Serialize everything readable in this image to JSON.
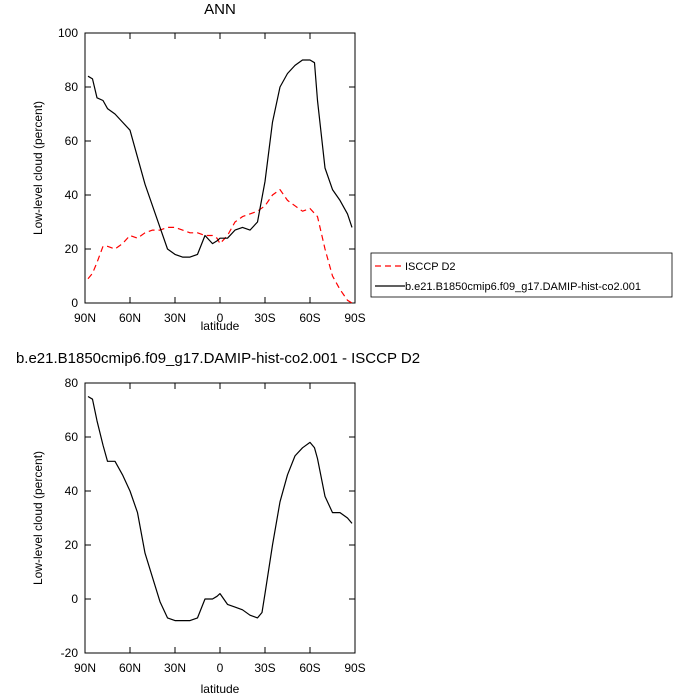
{
  "chart_data": [
    {
      "type": "line",
      "title": "ANN",
      "xlabel": "latitude",
      "ylabel": "Low-level cloud (percent)",
      "xlim": [
        90,
        -90
      ],
      "ylim": [
        0,
        100
      ],
      "xticks": [
        {
          "value": 90,
          "label": "90N"
        },
        {
          "value": 60,
          "label": "60N"
        },
        {
          "value": 30,
          "label": "30N"
        },
        {
          "value": 0,
          "label": "0"
        },
        {
          "value": -30,
          "label": "30S"
        },
        {
          "value": -60,
          "label": "60S"
        },
        {
          "value": -90,
          "label": "90S"
        }
      ],
      "yticks": [
        0,
        20,
        40,
        60,
        80,
        100
      ],
      "legend": "right",
      "series": [
        {
          "name": "ISCCP D2",
          "color": "#ff0000",
          "style": "dashed",
          "x": [
            88,
            85,
            82,
            78,
            75,
            70,
            65,
            60,
            55,
            50,
            45,
            40,
            35,
            30,
            25,
            20,
            15,
            10,
            5,
            2,
            0,
            -5,
            -10,
            -15,
            -20,
            -25,
            -30,
            -35,
            -40,
            -45,
            -50,
            -55,
            -60,
            -65,
            -70,
            -75,
            -80,
            -85,
            -88
          ],
          "y": [
            9,
            11,
            15,
            21,
            21,
            20,
            22,
            25,
            24,
            26,
            27,
            27,
            28,
            28,
            27,
            26,
            26,
            25,
            25,
            24,
            22,
            25,
            30,
            32,
            33,
            34,
            36,
            40,
            42,
            38,
            36,
            34,
            35,
            32,
            20,
            10,
            5,
            1,
            0
          ]
        },
        {
          "name": "b.e21.B1850cmip6.f09_g17.DAMIP-hist-co2.001",
          "color": "#000000",
          "style": "solid",
          "x": [
            88,
            85,
            82,
            78,
            75,
            70,
            65,
            60,
            55,
            50,
            45,
            40,
            35,
            30,
            25,
            20,
            15,
            10,
            5,
            2,
            0,
            -5,
            -10,
            -15,
            -20,
            -25,
            -30,
            -35,
            -40,
            -45,
            -50,
            -55,
            -60,
            -63,
            -65,
            -70,
            -75,
            -80,
            -85,
            -88
          ],
          "y": [
            84,
            83,
            76,
            75,
            72,
            70,
            67,
            64,
            54,
            44,
            36,
            28,
            20,
            18,
            17,
            17,
            18,
            25,
            22,
            23,
            24,
            24,
            27,
            28,
            27,
            30,
            45,
            67,
            80,
            85,
            88,
            90,
            90,
            89,
            75,
            50,
            42,
            38,
            33,
            28
          ]
        }
      ]
    },
    {
      "type": "line",
      "title": "b.e21.B1850cmip6.f09_g17.DAMIP-hist-co2.001 - ISCCP D2",
      "xlabel": "latitude",
      "ylabel": "Low-level cloud (percent)",
      "xlim": [
        90,
        -90
      ],
      "ylim": [
        -20,
        80
      ],
      "xticks": [
        {
          "value": 90,
          "label": "90N"
        },
        {
          "value": 60,
          "label": "60N"
        },
        {
          "value": 30,
          "label": "30N"
        },
        {
          "value": 0,
          "label": "0"
        },
        {
          "value": -30,
          "label": "30S"
        },
        {
          "value": -60,
          "label": "60S"
        },
        {
          "value": -90,
          "label": "90S"
        }
      ],
      "yticks": [
        -20,
        0,
        20,
        40,
        60,
        80
      ],
      "series": [
        {
          "color": "#000000",
          "style": "solid",
          "x": [
            88,
            85,
            82,
            78,
            75,
            70,
            65,
            60,
            55,
            50,
            45,
            40,
            35,
            30,
            25,
            20,
            15,
            10,
            5,
            2,
            0,
            -5,
            -10,
            -15,
            -20,
            -25,
            -28,
            -30,
            -35,
            -40,
            -45,
            -50,
            -55,
            -60,
            -63,
            -65,
            -70,
            -75,
            -80,
            -85,
            -88
          ],
          "y": [
            75,
            74,
            66,
            57,
            51,
            51,
            46,
            40,
            32,
            17,
            8,
            -1,
            -7,
            -8,
            -8,
            -8,
            -7,
            0,
            0,
            1,
            2,
            -2,
            -3,
            -4,
            -6,
            -7,
            -5,
            2,
            20,
            36,
            46,
            53,
            56,
            58,
            56,
            52,
            38,
            32,
            32,
            30,
            28
          ]
        }
      ]
    }
  ]
}
